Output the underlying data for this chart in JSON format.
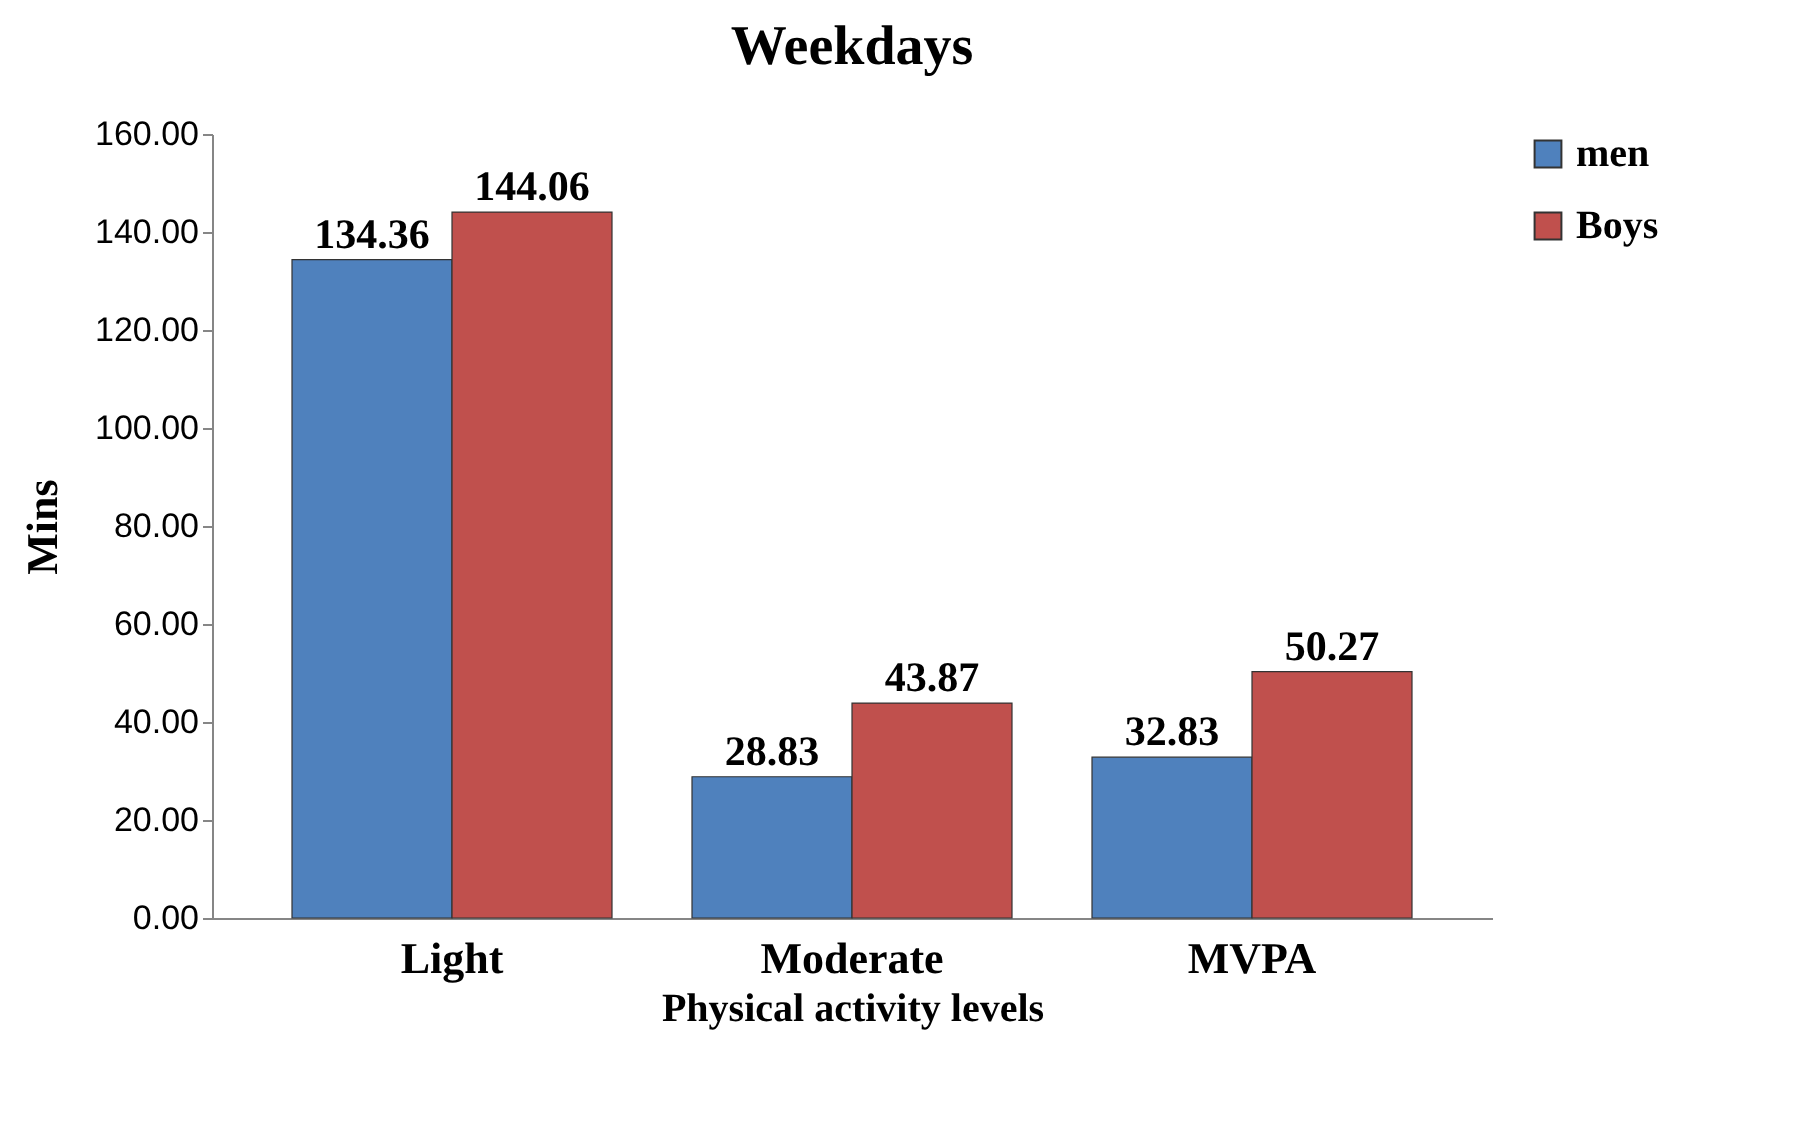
{
  "chart_data": {
    "type": "bar",
    "title": "Weekdays",
    "xlabel": "Physical activity levels",
    "ylabel": "Mins",
    "categories": [
      "Light",
      "Moderate",
      "MVPA"
    ],
    "series": [
      {
        "name": "men",
        "color": "#4f81bd",
        "values": [
          134.36,
          28.83,
          32.83
        ]
      },
      {
        "name": "Boys",
        "color": "#c0504d",
        "values": [
          144.06,
          43.87,
          50.27
        ]
      }
    ],
    "ylim": [
      0,
      160
    ],
    "yticks": [
      {
        "value": 0,
        "label": "0.00"
      },
      {
        "value": 20,
        "label": "20.00"
      },
      {
        "value": 40,
        "label": "40.00"
      },
      {
        "value": 60,
        "label": "60.00"
      },
      {
        "value": 80,
        "label": "80.00"
      },
      {
        "value": 100,
        "label": "100.00"
      },
      {
        "value": 120,
        "label": "120.00"
      },
      {
        "value": 140,
        "label": "140.00"
      },
      {
        "value": 160,
        "label": "160.00"
      }
    ],
    "grid": false,
    "legend": "right",
    "data_labels": true
  }
}
